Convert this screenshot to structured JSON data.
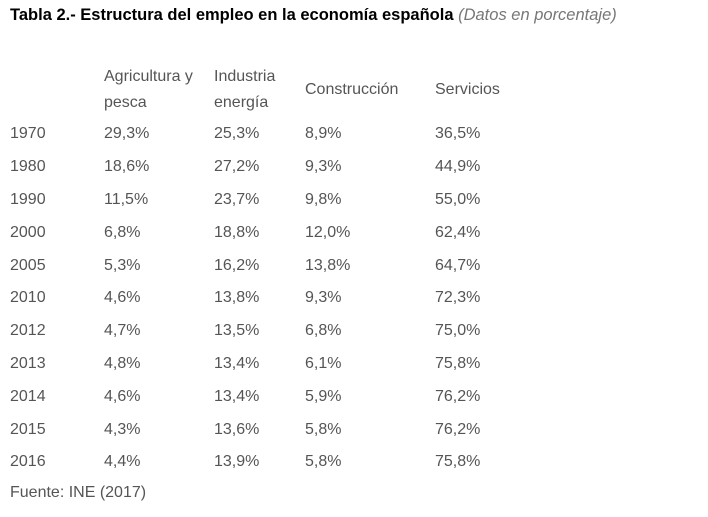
{
  "title": {
    "main": "Tabla 2.- Estructura del empleo en la economía española",
    "sub": "(Datos en porcentaje)"
  },
  "table": {
    "headers": [
      "",
      "Agricultura y\npesca",
      "Industria\nenergía",
      "Construcción",
      "Servicios"
    ],
    "rows": [
      [
        "1970",
        "29,3%",
        "25,3%",
        "8,9%",
        "36,5%"
      ],
      [
        "1980",
        "18,6%",
        "27,2%",
        "9,3%",
        "44,9%"
      ],
      [
        "1990",
        "11,5%",
        "23,7%",
        "9,8%",
        "55,0%"
      ],
      [
        "2000",
        "6,8%",
        "18,8%",
        "12,0%",
        "62,4%"
      ],
      [
        "2005",
        "5,3%",
        "16,2%",
        "13,8%",
        "64,7%"
      ],
      [
        "2010",
        "4,6%",
        "13,8%",
        "9,3%",
        "72,3%"
      ],
      [
        "2012",
        "4,7%",
        "13,5%",
        "6,8%",
        "75,0%"
      ],
      [
        "2013",
        "4,8%",
        "13,4%",
        "6,1%",
        "75,8%"
      ],
      [
        "2014",
        "4,6%",
        "13,4%",
        "5,9%",
        "76,2%"
      ],
      [
        "2015",
        "4,3%",
        "13,6%",
        "5,8%",
        "76,2%"
      ],
      [
        "2016",
        "4,4%",
        "13,9%",
        "5,8%",
        "75,8%"
      ]
    ]
  },
  "source": "Fuente: INE (2017)"
}
